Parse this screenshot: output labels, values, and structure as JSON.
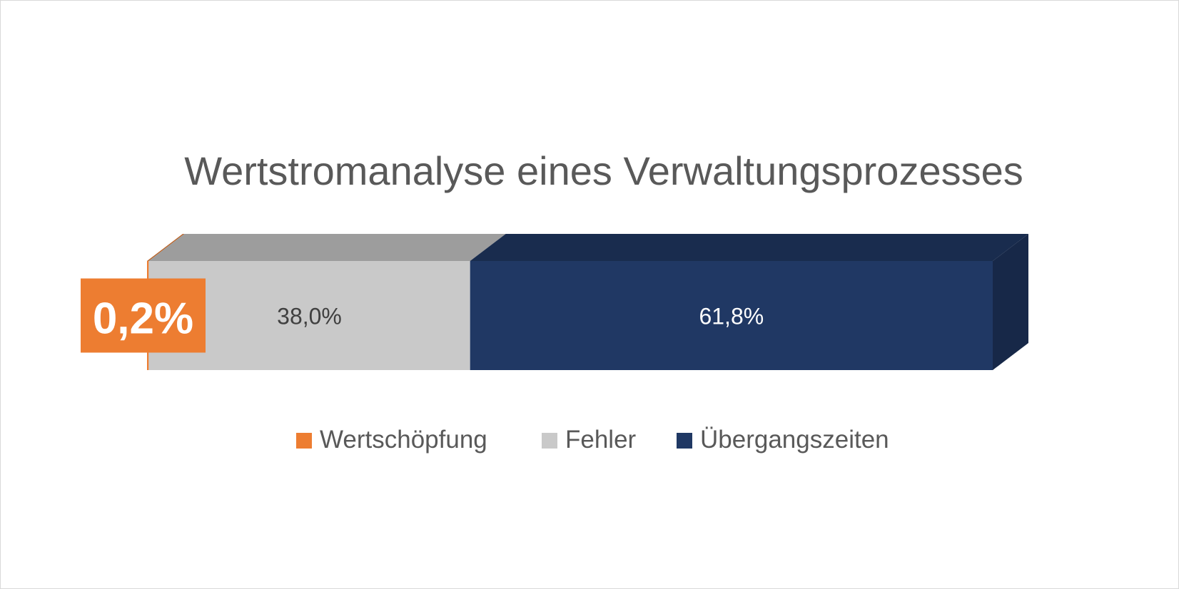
{
  "chart_data": {
    "type": "bar",
    "orientation": "horizontal",
    "stacked": "percent",
    "style_3d": true,
    "title": "Wertstromanalyse eines Verwaltungsprozesses",
    "series": [
      {
        "name": "Wertschöpfung",
        "value": 0.2,
        "label": "0,2%",
        "color": "#ed7d31"
      },
      {
        "name": "Fehler",
        "value": 38.0,
        "label": "38,0%",
        "color": "#c9c9c9"
      },
      {
        "name": "Übergangszeiten",
        "value": 61.8,
        "label": "61,8%",
        "color": "#203864"
      }
    ],
    "xlim": [
      0,
      100
    ],
    "grid": false,
    "legend": "bottom"
  }
}
